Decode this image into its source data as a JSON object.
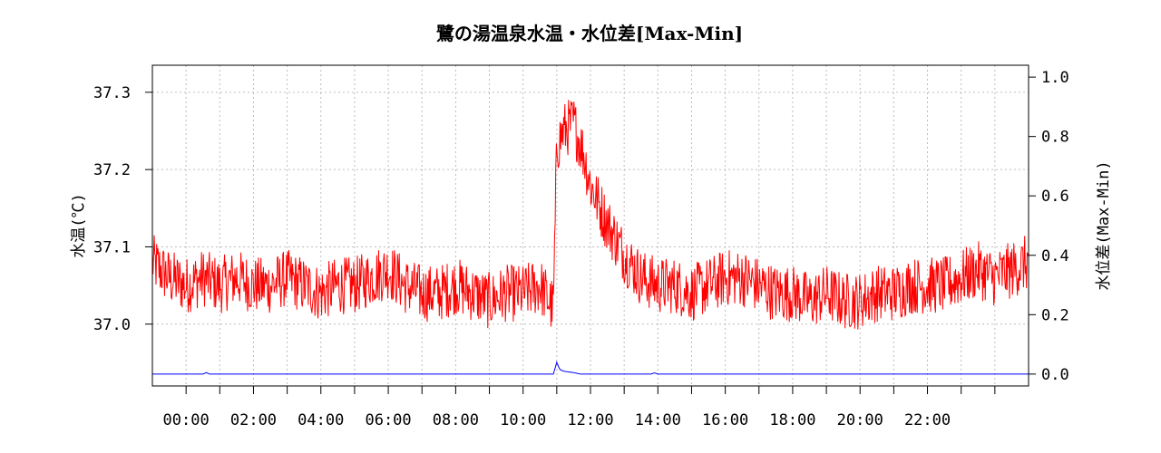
{
  "chart_data": {
    "type": "line",
    "title": "鷺の湯温泉水温・水位差[Max-Min]",
    "ylabel_left": "水温(℃)",
    "ylabel_right": "水位差(Max-Min)",
    "x_tick_labels": [
      "00:00",
      "02:00",
      "04:00",
      "06:00",
      "08:00",
      "10:00",
      "12:00",
      "14:00",
      "16:00",
      "18:00",
      "20:00",
      "22:00"
    ],
    "x_range_hours": [
      -1.0,
      25.0
    ],
    "y_left_ticks": [
      "37.0",
      "37.1",
      "37.2",
      "37.3"
    ],
    "y_left_range": [
      36.92,
      37.335
    ],
    "y_right_ticks": [
      "0.0",
      "0.2",
      "0.4",
      "0.6",
      "0.8",
      "1.0"
    ],
    "y_right_range": [
      -0.04,
      1.04
    ],
    "grid": true,
    "colors": {
      "temperature": "#ff0000",
      "water_level_diff": "#0000ff"
    },
    "series": [
      {
        "axis": "left",
        "color": "#ff0000",
        "hours": [
          -1.0,
          -0.5,
          0.0,
          0.5,
          1.0,
          1.5,
          2.0,
          2.5,
          3.0,
          3.5,
          4.0,
          4.5,
          5.0,
          5.5,
          6.0,
          6.5,
          7.0,
          7.5,
          8.0,
          8.5,
          9.0,
          9.5,
          10.0,
          10.5,
          10.9,
          11.0,
          11.2,
          11.5,
          11.8,
          12.0,
          12.5,
          13.0,
          13.5,
          14.0,
          14.5,
          15.0,
          15.5,
          16.0,
          16.5,
          17.0,
          17.5,
          18.0,
          18.5,
          19.0,
          19.5,
          20.0,
          20.5,
          21.0,
          21.5,
          22.0,
          22.5,
          23.0,
          23.5,
          24.0,
          24.5,
          25.0
        ],
        "values": [
          37.08,
          37.06,
          37.05,
          37.06,
          37.05,
          37.06,
          37.05,
          37.05,
          37.06,
          37.05,
          37.04,
          37.05,
          37.05,
          37.06,
          37.07,
          37.05,
          37.04,
          37.04,
          37.05,
          37.04,
          37.03,
          37.04,
          37.04,
          37.05,
          37.02,
          37.23,
          37.25,
          37.26,
          37.22,
          37.18,
          37.13,
          37.09,
          37.06,
          37.05,
          37.05,
          37.04,
          37.05,
          37.06,
          37.06,
          37.05,
          37.04,
          37.04,
          37.03,
          37.04,
          37.03,
          37.03,
          37.04,
          37.04,
          37.05,
          37.05,
          37.05,
          37.06,
          37.07,
          37.06,
          37.07,
          37.08
        ]
      },
      {
        "axis": "right",
        "color": "#0000ff",
        "hours": [
          -1.0,
          0.5,
          0.6,
          0.7,
          10.9,
          11.0,
          11.05,
          11.1,
          11.2,
          11.3,
          11.5,
          11.7,
          13.8,
          13.9,
          14.0,
          25.0
        ],
        "values": [
          0.0,
          0.0,
          0.005,
          0.0,
          0.0,
          0.04,
          0.025,
          0.015,
          0.01,
          0.008,
          0.005,
          0.0,
          0.0,
          0.004,
          0.0,
          0.0
        ]
      }
    ]
  }
}
